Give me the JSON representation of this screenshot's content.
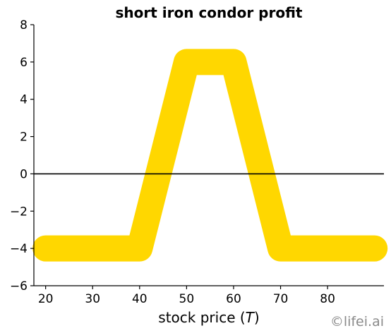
{
  "chart_data": {
    "type": "line",
    "title": "short iron condor profit",
    "xlabel_prefix": "stock price (",
    "xlabel_var": "T",
    "xlabel_suffix": ")",
    "ylabel": "",
    "xlim": [
      17.5,
      92
    ],
    "ylim": [
      -6,
      8
    ],
    "xticks": [
      20,
      30,
      40,
      50,
      60,
      70,
      80
    ],
    "yticks": [
      -6,
      -4,
      -2,
      0,
      2,
      4,
      6,
      8
    ],
    "ytick_labels": [
      "−6",
      "−4",
      "−2",
      "0",
      "2",
      "4",
      "6",
      "8"
    ],
    "grid": false,
    "zero_line": 0,
    "series": [
      {
        "x": [
          20,
          40,
          50,
          60,
          70,
          90
        ],
        "y": [
          -4,
          -4,
          6,
          6,
          -4,
          -4
        ],
        "color": "#ffd700"
      }
    ]
  },
  "watermark": "©lifei.ai",
  "colors": {
    "line": "#ffd700",
    "axis": "#000000",
    "watermark": "#8a8a8a"
  }
}
